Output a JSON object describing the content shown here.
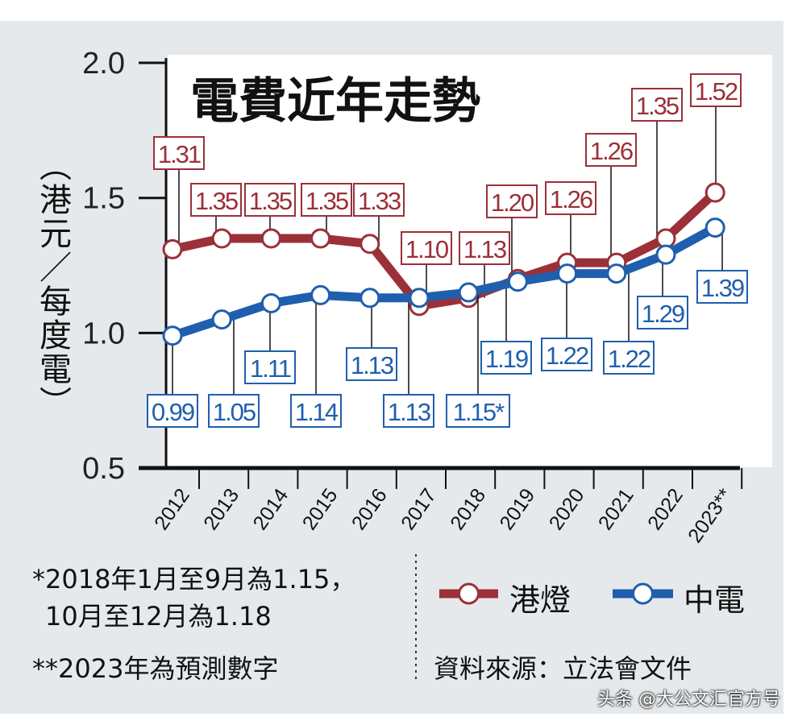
{
  "chart_data": {
    "type": "line",
    "title": "電費近年走勢",
    "ylabel": "（港元／每度電）",
    "ylim": [
      0.5,
      2.0
    ],
    "yticks": [
      "0.5",
      "1.0",
      "1.5",
      "2.0"
    ],
    "categories": [
      "2012",
      "2013",
      "2014",
      "2015",
      "2016",
      "2017",
      "2018",
      "2019",
      "2020",
      "2021",
      "2022",
      "2023**"
    ],
    "series": [
      {
        "name": "港燈",
        "color": "#9b3039",
        "values": [
          1.31,
          1.35,
          1.35,
          1.35,
          1.33,
          1.1,
          1.13,
          1.2,
          1.26,
          1.26,
          1.35,
          1.52
        ],
        "labels": [
          "1.31",
          "1.35",
          "1.35",
          "1.35",
          "1.33",
          "1.10",
          "1.13",
          "1.20",
          "1.26",
          "1.26",
          "1.35",
          "1.52"
        ]
      },
      {
        "name": "中電",
        "color": "#1f5fae",
        "values": [
          0.99,
          1.05,
          1.11,
          1.14,
          1.13,
          1.13,
          1.15,
          1.19,
          1.22,
          1.22,
          1.29,
          1.39
        ],
        "labels": [
          "0.99",
          "1.05",
          "1.11",
          "1.14",
          "1.13",
          "1.13",
          "1.15*",
          "1.19",
          "1.22",
          "1.22",
          "1.29",
          "1.39"
        ]
      }
    ],
    "grid": false,
    "legend": "bottom-right"
  },
  "notes": {
    "note1_line1": "*2018年1月至9月為1.15，",
    "note1_line2": "10月至12月為1.18",
    "note2": "**2023年為預測數字",
    "source": "資料來源：立法會文件"
  },
  "watermark": "头条 @大公文汇官方号"
}
